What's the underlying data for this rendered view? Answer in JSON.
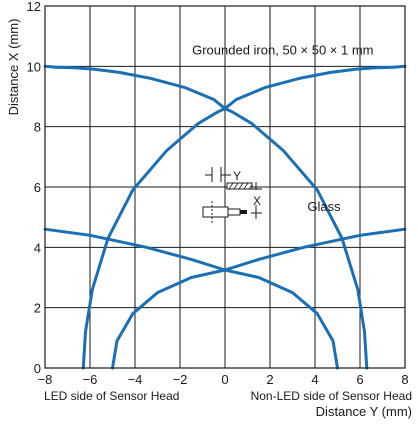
{
  "chart_data": {
    "type": "line",
    "title": "",
    "xlabel": "Distance Y (mm)",
    "ylabel": "Distance X (mm)",
    "xlim": [
      -8,
      8
    ],
    "ylim": [
      0,
      12
    ],
    "x_ticks": [
      -8,
      -6,
      -4,
      -2,
      0,
      2,
      4,
      6,
      8
    ],
    "x_tick_labels": [
      "−8",
      "−6",
      "−4",
      "−2",
      "0",
      "2",
      "4",
      "6",
      "8"
    ],
    "y_ticks": [
      0,
      2,
      4,
      6,
      8,
      10,
      12
    ],
    "y_tick_labels": [
      "0",
      "2",
      "4",
      "6",
      "8",
      "10",
      "12"
    ],
    "grid": true,
    "x_side_labels": {
      "left": "LED side of Sensor Head",
      "right": "Non-LED side of Sensor Head"
    },
    "line_color": "#1a6fb5",
    "series": [
      {
        "name": "Grounded iron, 50 × 50 × 1 mm",
        "curves": [
          {
            "x": [
              6.3,
              6.2,
              5.9,
              5.2,
              4.1,
              2.6,
              1.2,
              0.3,
              0.0,
              -0.5,
              -1.8,
              -3.3,
              -4.7,
              -5.8,
              -6.7,
              -7.5,
              -8.0
            ],
            "y": [
              0,
              1.2,
              2.6,
              4.3,
              5.9,
              7.2,
              8.1,
              8.5,
              8.6,
              8.9,
              9.3,
              9.6,
              9.8,
              9.9,
              9.95,
              9.97,
              10.0
            ]
          },
          {
            "x": [
              -6.3,
              -6.2,
              -5.9,
              -5.2,
              -4.1,
              -2.6,
              -1.2,
              -0.3,
              0.0,
              0.5,
              1.8,
              3.3,
              4.7,
              5.8,
              6.7,
              7.5,
              8.0
            ],
            "y": [
              0,
              1.2,
              2.6,
              4.3,
              5.9,
              7.2,
              8.1,
              8.5,
              8.6,
              8.9,
              9.3,
              9.6,
              9.8,
              9.9,
              9.95,
              9.97,
              10.0
            ]
          }
        ],
        "label_x": 6.6,
        "label_y": 10.4
      },
      {
        "name": "Glass",
        "curves": [
          {
            "x": [
              5.0,
              4.8,
              4.1,
              3.0,
              1.5,
              0.0,
              -1.5,
              -3.5,
              -6.0,
              -8.0
            ],
            "y": [
              0,
              0.9,
              1.8,
              2.5,
              3.0,
              3.25,
              3.6,
              4.0,
              4.4,
              4.6
            ]
          },
          {
            "x": [
              -5.0,
              -4.8,
              -4.1,
              -3.0,
              -1.5,
              0.0,
              1.5,
              3.5,
              6.0,
              8.0
            ],
            "y": [
              0,
              0.9,
              1.8,
              2.5,
              3.0,
              3.25,
              3.6,
              4.0,
              4.4,
              4.6
            ]
          }
        ],
        "label_x": 4.4,
        "label_y": 5.2
      }
    ],
    "inset_labels": {
      "y": "Y",
      "x": "X"
    }
  }
}
